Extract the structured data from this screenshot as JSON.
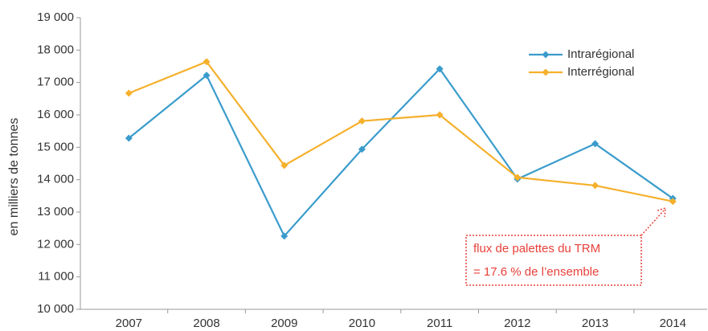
{
  "chart_data": {
    "type": "line",
    "y_label": "en milliers de tonnes",
    "categories": [
      "2007",
      "2008",
      "2009",
      "2010",
      "2011",
      "2012",
      "2013",
      "2014"
    ],
    "series": [
      {
        "name": "Intrarégional",
        "color": "#3a9ccc",
        "values": [
          15280,
          17220,
          12260,
          14940,
          17420,
          14020,
          15110,
          13420
        ]
      },
      {
        "name": "Interrégional",
        "color": "#f5b02c",
        "values": [
          16670,
          17640,
          14440,
          15810,
          16000,
          14070,
          13820,
          13330
        ]
      }
    ],
    "ylim": [
      10000,
      19000
    ],
    "yticks": [
      {
        "value": 10000,
        "label": "10 000"
      },
      {
        "value": 11000,
        "label": "11 000"
      },
      {
        "value": 12000,
        "label": "12 000"
      },
      {
        "value": 13000,
        "label": "13 000"
      },
      {
        "value": 14000,
        "label": "14 000"
      },
      {
        "value": 15000,
        "label": "15 000"
      },
      {
        "value": 16000,
        "label": "16 000"
      },
      {
        "value": 17000,
        "label": "17 000"
      },
      {
        "value": 18000,
        "label": "18 000"
      },
      {
        "value": 19000,
        "label": "19 000"
      }
    ],
    "annotation": [
      "flux de palettes du TRM",
      "= 17.6 % de l’ensemble"
    ],
    "legend": "upper right"
  }
}
